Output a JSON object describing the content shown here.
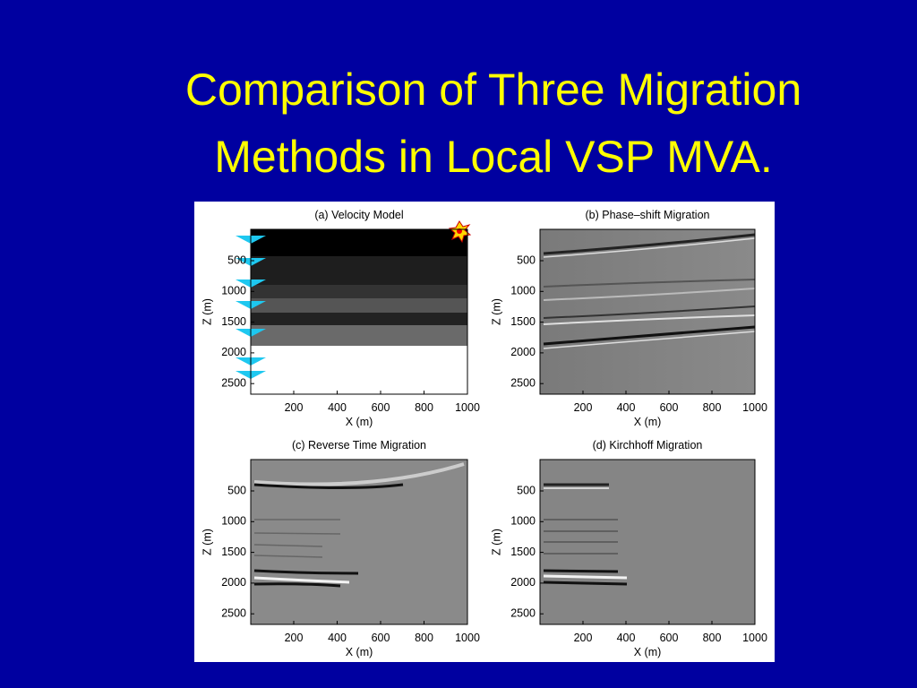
{
  "title": {
    "lines": [
      "Comparison of Three Migration",
      "Methods in Local VSP MVA."
    ]
  },
  "figure": {
    "panels": [
      {
        "title": "(a) Velocity Model",
        "xlabel": "X (m)",
        "ylabel": "Z (m)",
        "xticks": [
          200,
          400,
          600,
          800,
          1000
        ],
        "yticks": [
          500,
          1000,
          1500,
          2000,
          2500
        ]
      },
      {
        "title": "(b) Phase–shift Migration",
        "xlabel": "X (m)",
        "ylabel": "Z (m)",
        "xticks": [
          200,
          400,
          600,
          800,
          1000
        ],
        "yticks": [
          500,
          1000,
          1500,
          2000,
          2500
        ]
      },
      {
        "title": "(c) Reverse Time Migration",
        "xlabel": "X (m)",
        "ylabel": "Z (m)",
        "xticks": [
          200,
          400,
          600,
          800,
          1000
        ],
        "yticks": [
          500,
          1000,
          1500,
          2000,
          2500
        ]
      },
      {
        "title": "(d) Kirchhoff Migration",
        "xlabel": "X (m)",
        "ylabel": "Z (m)",
        "xticks": [
          200,
          400,
          600,
          800,
          1000
        ],
        "yticks": [
          500,
          1000,
          1500,
          2000,
          2500
        ]
      }
    ]
  }
}
